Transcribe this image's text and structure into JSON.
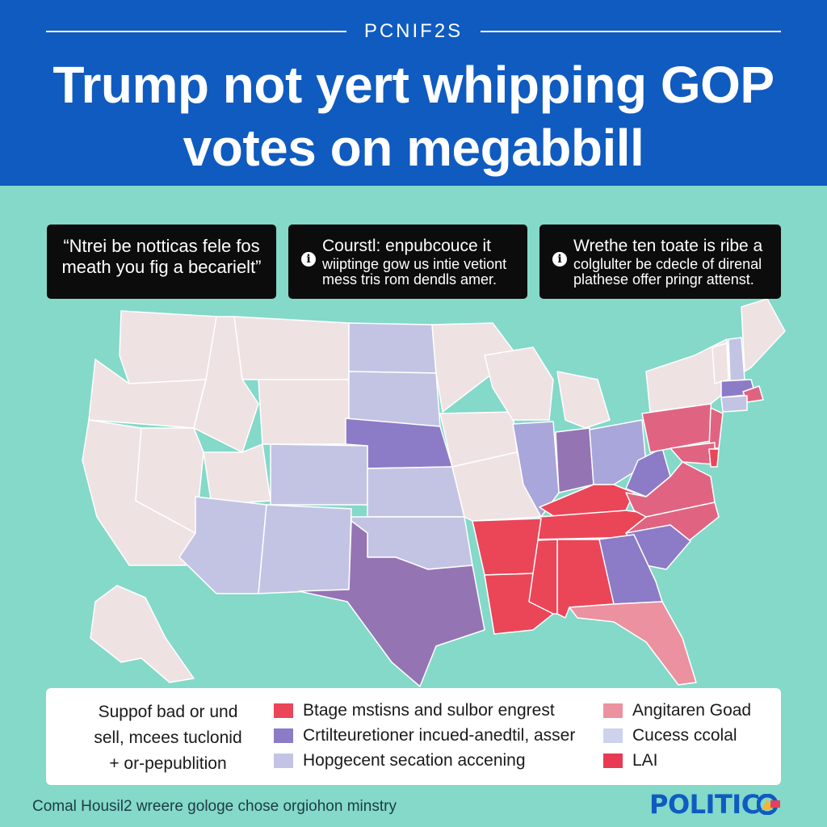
{
  "header": {
    "kicker": "PCNIF2S",
    "headline_line1": "Trump not yert whipping GOP",
    "headline_line2": "votes on megabbill"
  },
  "quotes": [
    {
      "line1": "“Ntrei be notticas fele fos",
      "line2": "meath you fig a becarielt”",
      "icon": null
    },
    {
      "line1": "Courstl: enpubcouce it",
      "line2": "wiiptinge gow us intie vetiont",
      "line3": "mess tris rom dendls amer.",
      "icon": "info-icon"
    },
    {
      "line1": "Wrethe ten toate is ribe a",
      "line2": "colglulter be cdecle of direnal",
      "line3": "plathese offer pringr attenst.",
      "icon": "info-icon"
    }
  ],
  "map": {
    "colors": {
      "background": "#84d9c9",
      "neutral": "#efe2e3",
      "light_lavender": "#c3c4e4",
      "lavender": "#a8a6da",
      "medium_purple": "#8c7bc6",
      "purple": "#9574b4",
      "red": "#ea4658",
      "rose": "#e06481",
      "pink": "#eb91a0"
    }
  },
  "legend": {
    "intro_line1": "Suppof bad or und",
    "intro_line2": "sell, mcees tuclonid",
    "intro_line3": "+ or-pepublition",
    "items": [
      {
        "label": "Btage mstisns and sulbor engrest",
        "color": "#ea4658"
      },
      {
        "label": "Crtilteuretioner incued-anedtil, asser",
        "color": "#8c7bc6"
      },
      {
        "label": "Hopgecent secation accening",
        "color": "#c3c4e4"
      },
      {
        "label": "Angitaren Goad",
        "color": "#eb91a0"
      },
      {
        "label": "Cucess ccolal",
        "color": "#cfd2ec"
      },
      {
        "label": "LAI",
        "color": "#e83a52"
      }
    ]
  },
  "footer": {
    "credit": "Comal Housil2 wreere  gologe chose orgiohon minstry",
    "logo_text": "POLITIC"
  }
}
